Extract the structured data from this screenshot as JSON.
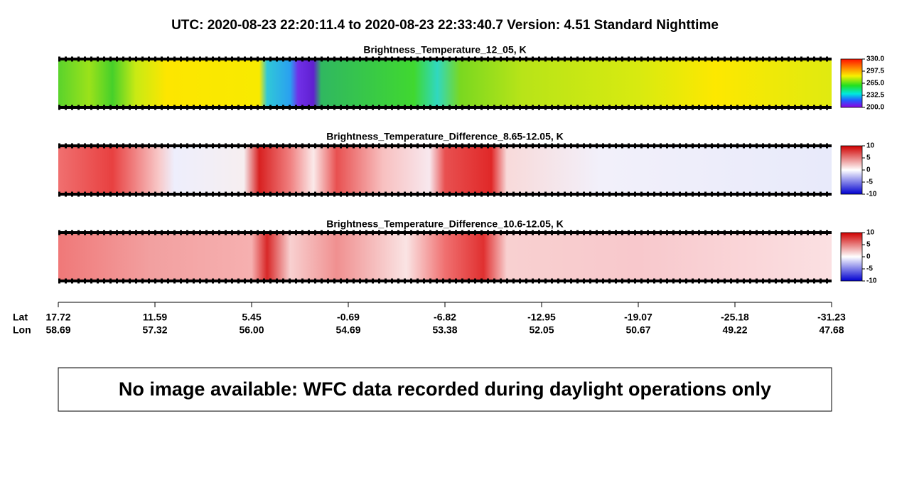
{
  "header": {
    "title": "UTC:  2020-08-23   22:20:11.4  to  2020-08-23   22:33:40.7    Version: 4.51  Standard Nighttime"
  },
  "panels": [
    {
      "title": "Brightness_Temperature_12_05, K",
      "clim": [
        200,
        330
      ],
      "ticks": [
        {
          "value": 200,
          "label": "200.0"
        },
        232.5,
        {
          "value": 265,
          "label": "265.0"
        },
        297.5,
        {
          "value": 330,
          "label": "330.0"
        }
      ]
    },
    {
      "title": "Brightness_Temperature_Difference_8.65-12.05, K",
      "clim": [
        -10,
        10
      ],
      "ticks": [
        -10,
        -5,
        0,
        5,
        10
      ]
    },
    {
      "title": "Brightness_Temperature_Difference_10.6-12.05, K",
      "clim": [
        -10,
        10
      ],
      "ticks": [
        -10,
        -5,
        0,
        5,
        10
      ]
    }
  ],
  "axis": {
    "lat_label": "Lat",
    "lon_label": "Lon",
    "positions": [
      {
        "lat": "17.72",
        "lon": "58.69"
      },
      {
        "lat": "11.59",
        "lon": "57.32"
      },
      {
        "lat": "5.45",
        "lon": "56.00"
      },
      {
        "lat": "-0.69",
        "lon": "54.69"
      },
      {
        "lat": "-6.82",
        "lon": "53.38"
      },
      {
        "lat": "-12.95",
        "lon": "52.05"
      },
      {
        "lat": "-19.07",
        "lon": "50.67"
      },
      {
        "lat": "-25.18",
        "lon": "49.22"
      },
      {
        "lat": "-31.23",
        "lon": "47.68"
      }
    ]
  },
  "message": "No image available: WFC data recorded during daylight operations only"
}
